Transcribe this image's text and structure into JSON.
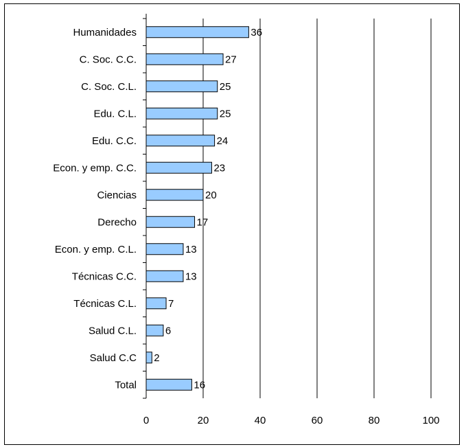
{
  "chart_data": {
    "type": "bar",
    "orientation": "horizontal",
    "categories": [
      "Humanidades",
      "C. Soc. C.C.",
      "C. Soc. C.L.",
      "Edu. C.L.",
      "Edu. C.C.",
      "Econ. y emp. C.C.",
      "Ciencias",
      "Derecho",
      "Econ. y emp. C.L.",
      "Técnicas C.C.",
      "Técnicas C.L.",
      "Salud C.L.",
      "Salud C.C",
      "Total"
    ],
    "values": [
      36,
      27,
      25,
      25,
      24,
      23,
      20,
      17,
      13,
      13,
      7,
      6,
      2,
      16
    ],
    "xlim": [
      0,
      100
    ],
    "xticks": [
      0,
      20,
      40,
      60,
      80,
      100
    ],
    "grid": "vertical gridlines at 20, 40, 60, 80, 100",
    "bar_color": "#99ccff",
    "bar_edge_color": "#000000",
    "data_labels": true,
    "legend": "none"
  }
}
